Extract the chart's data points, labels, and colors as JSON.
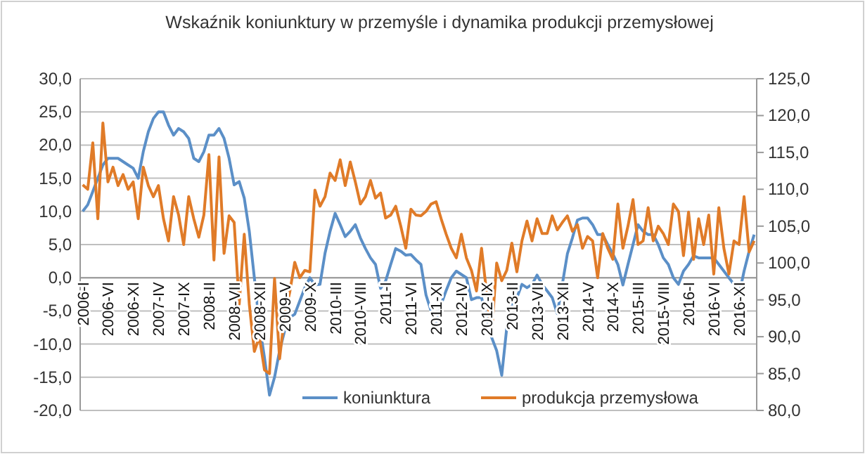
{
  "chart_data": {
    "type": "line",
    "title": "Wskaźnik koniunktury w przemyśle i dynamika produkcji przemysłowej",
    "categories": [
      "2006-I",
      null,
      null,
      null,
      null,
      "2006-VI",
      null,
      null,
      null,
      null,
      "2006-XI",
      null,
      null,
      null,
      null,
      "2007-IV",
      null,
      null,
      null,
      null,
      "2007-IX",
      null,
      null,
      null,
      null,
      "2008-II",
      null,
      null,
      null,
      null,
      "2008-VII",
      null,
      null,
      null,
      null,
      "2008-XII",
      null,
      null,
      null,
      null,
      "2009-V",
      null,
      null,
      null,
      null,
      "2009-X",
      null,
      null,
      null,
      null,
      "2010-III",
      null,
      null,
      null,
      null,
      "2010-VIII",
      null,
      null,
      null,
      null,
      "2011-I",
      null,
      null,
      null,
      null,
      "2011-VI",
      null,
      null,
      null,
      null,
      "2011-XI",
      null,
      null,
      null,
      null,
      "2012-IV",
      null,
      null,
      null,
      null,
      "2012-IX",
      null,
      null,
      null,
      null,
      "2013-II",
      null,
      null,
      null,
      null,
      "2013-VII",
      null,
      null,
      null,
      null,
      "2013-XII",
      null,
      null,
      null,
      null,
      "2014-V",
      null,
      null,
      null,
      null,
      "2014-X",
      null,
      null,
      null,
      null,
      "2015-III",
      null,
      null,
      null,
      null,
      "2015-VIII",
      null,
      null,
      null,
      null,
      "2016-I",
      null,
      null,
      null,
      null,
      "2016-VI",
      null,
      null,
      null,
      null,
      "2016-XI",
      null,
      null,
      null
    ],
    "series": [
      {
        "name": "koniunktura",
        "color": "#5b8fc7",
        "axis": "y",
        "values": [
          10,
          11,
          13,
          15,
          17,
          18,
          18,
          18,
          17.5,
          17,
          16.5,
          15,
          19,
          22,
          24,
          25,
          25,
          23,
          21.5,
          22.5,
          22,
          21,
          18,
          17.5,
          19,
          21.5,
          21.5,
          22.5,
          21,
          18,
          14,
          14.5,
          12,
          7,
          0,
          -7,
          -12,
          -17.7,
          -15,
          -11,
          -8,
          -6,
          -5.5,
          -3.5,
          -1.5,
          0,
          -1.1,
          -1,
          3.7,
          7,
          9.7,
          8,
          6.2,
          7,
          8,
          6,
          4.4,
          3,
          2,
          -1.6,
          -0.5,
          2,
          4.4,
          4,
          3.4,
          3.5,
          2.7,
          2,
          -2.6,
          -5,
          -6.9,
          -4,
          -1.9,
          0,
          1,
          0.5,
          0,
          -3.3,
          -3,
          -3,
          -6,
          -9,
          -11,
          -14.7,
          -7.5,
          -4,
          -3,
          -1,
          -1.5,
          -1,
          0.4,
          -1,
          -2,
          -3,
          -5.4,
          -1,
          3.6,
          6,
          8.7,
          9,
          9,
          8,
          6.5,
          6.5,
          5,
          3.6,
          2,
          -1.1,
          2,
          5,
          8,
          7,
          6.5,
          6.5,
          5,
          3,
          2,
          0,
          -1,
          1,
          2,
          3.3,
          3,
          3,
          3,
          3,
          2,
          1,
          0,
          -1,
          -2.6,
          1,
          4,
          6.5
        ]
      },
      {
        "name": "produkcja przemysłowa",
        "color": "#e07b28",
        "axis": "y2",
        "values": [
          110.6,
          110,
          116.3,
          106,
          119,
          111,
          113,
          110.5,
          112,
          110,
          111,
          106,
          113,
          110.5,
          109,
          110.5,
          106,
          103,
          109,
          106.5,
          102.5,
          109,
          106,
          103.5,
          106.5,
          114.7,
          100.4,
          114.4,
          101.3,
          106.4,
          105.5,
          94.4,
          103.9,
          94.4,
          88,
          90,
          85.5,
          85,
          97.9,
          87,
          93,
          96,
          100.1,
          98,
          99,
          98.8,
          109.9,
          107.7,
          109,
          112.2,
          111.2,
          114,
          110.5,
          113.7,
          111,
          108,
          109,
          111.2,
          108.8,
          109.5,
          106.1,
          106.5,
          107.7,
          105,
          102,
          107.3,
          106.5,
          106.4,
          107,
          108,
          108.3,
          106,
          103.9,
          102,
          100.7,
          103.9,
          100.7,
          99,
          96.2,
          102,
          96,
          90.5,
          100,
          97.6,
          99,
          102.7,
          98.8,
          103,
          105.7,
          103,
          106,
          104,
          104,
          106.4,
          104.5,
          105.5,
          106.4,
          104.3,
          105.2,
          102,
          103.6,
          103,
          98,
          104,
          102,
          100.5,
          108,
          102,
          105,
          108.6,
          102.5,
          103,
          107.5,
          103,
          105,
          104,
          102.5,
          108,
          107,
          101,
          106.9,
          100.5,
          106,
          102.5,
          106.5,
          98.5,
          107.5,
          102,
          98.5,
          103,
          102.5,
          109,
          101.5,
          103
        ]
      }
    ],
    "ylim": [
      -20,
      30
    ],
    "yticks": [
      {
        "value": -20,
        "label": "-20,0"
      },
      {
        "value": -15,
        "label": "-15,0"
      },
      {
        "value": -10,
        "label": "-10,0"
      },
      {
        "value": -5,
        "label": "-5,0"
      },
      {
        "value": 0,
        "label": "0,0"
      },
      {
        "value": 5,
        "label": "5,0"
      },
      {
        "value": 10,
        "label": "10,0"
      },
      {
        "value": 15,
        "label": "15,0"
      },
      {
        "value": 20,
        "label": "20,0"
      },
      {
        "value": 25,
        "label": "25,0"
      },
      {
        "value": 30,
        "label": "30,0"
      }
    ],
    "y2lim": [
      80,
      125
    ],
    "y2ticks": [
      {
        "value": 80,
        "label": "80,0"
      },
      {
        "value": 85,
        "label": "85,0"
      },
      {
        "value": 90,
        "label": "90,0"
      },
      {
        "value": 95,
        "label": "95,0"
      },
      {
        "value": 100,
        "label": "100,0"
      },
      {
        "value": 105,
        "label": "105,0"
      },
      {
        "value": 110,
        "label": "110,0"
      },
      {
        "value": 115,
        "label": "115,0"
      },
      {
        "value": 120,
        "label": "120,0"
      },
      {
        "value": 125,
        "label": "125,0"
      }
    ],
    "grid": "y",
    "legend": "bottom",
    "marker": "none",
    "line_style": "solid"
  }
}
